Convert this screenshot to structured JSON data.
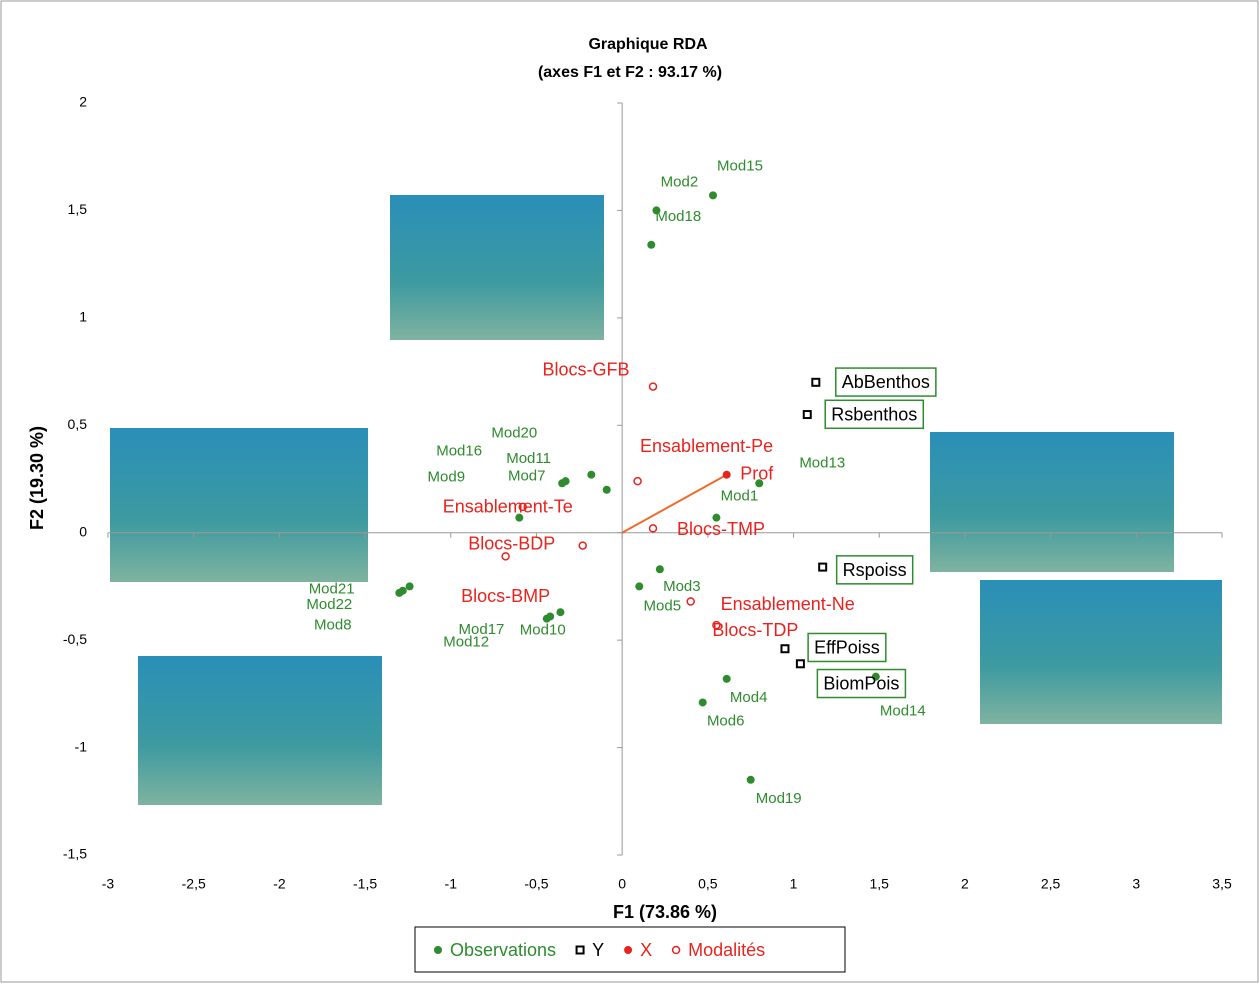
{
  "chart_data": {
    "type": "scatter",
    "title": "Graphique RDA",
    "subtitle": "(axes F1 et F2 : 93.17 %)",
    "x_label": "F1 (73.86 %)",
    "y_label": "F2 (19.30 %)",
    "xlim": [
      -3,
      3.5
    ],
    "ylim": [
      -1.5,
      2
    ],
    "xticks": [
      -3,
      {
        "value": -2.5,
        "label": "-2,5"
      },
      -2,
      {
        "value": -1.5,
        "label": "-1,5"
      },
      -1,
      {
        "value": -0.5,
        "label": "-0,5"
      },
      0,
      {
        "value": 0.5,
        "label": "0,5"
      },
      1,
      {
        "value": 1.5,
        "label": "1,5"
      },
      2,
      {
        "value": 2.5,
        "label": "2,5"
      },
      3,
      {
        "value": 3.5,
        "label": "3,5"
      }
    ],
    "yticks": [
      {
        "value": -1.5,
        "label": "-1,5"
      },
      -1,
      {
        "value": -0.5,
        "label": "-0,5"
      },
      0,
      {
        "value": 0.5,
        "label": "0,5"
      },
      1,
      {
        "value": 1.5,
        "label": "1,5"
      },
      2
    ],
    "series": [
      {
        "name": "Observations",
        "color": "#2e8b2e",
        "marker": "dot",
        "labels": [
          "Mod15",
          "Mod2",
          "Mod18",
          "Mod20",
          "Mod16",
          "Mod11",
          "Mod7",
          "Mod9",
          "Mod13",
          "Mod1",
          "Mod3",
          "Mod5",
          "Mod21",
          "Mod22",
          "Mod8",
          "Mod17",
          "Mod10",
          "Mod12",
          "Mod4",
          "Mod6",
          "Mod14",
          "Mod19"
        ],
        "x": [
          0.53,
          0.2,
          0.17,
          -0.18,
          -0.35,
          -0.33,
          -0.09,
          -0.6,
          0.8,
          0.55,
          0.22,
          0.1,
          -1.24,
          -1.3,
          -1.28,
          -0.36,
          -0.44,
          -0.42,
          0.61,
          0.47,
          1.48,
          0.75
        ],
        "values": [
          1.57,
          1.5,
          1.34,
          0.27,
          0.23,
          0.24,
          0.2,
          0.07,
          0.23,
          0.07,
          -0.17,
          -0.25,
          -0.25,
          -0.28,
          -0.27,
          -0.37,
          -0.4,
          -0.39,
          -0.68,
          -0.79,
          -0.67,
          -1.15
        ]
      },
      {
        "name": "Y",
        "color": "#000000",
        "marker": "square",
        "labels": [
          "AbBenthos",
          "Rsbenthos",
          "Rspoiss",
          "EffPoiss",
          "BiomPois"
        ],
        "x": [
          1.13,
          1.08,
          1.17,
          0.95,
          1.04
        ],
        "values": [
          0.7,
          0.55,
          -0.16,
          -0.54,
          -0.61
        ]
      },
      {
        "name": "X",
        "color": "#e8231e",
        "marker": "dot",
        "labels": [
          "Prof"
        ],
        "x": [
          0.61
        ],
        "values": [
          0.27
        ]
      },
      {
        "name": "Modalités",
        "color": "#e8231e",
        "marker": "circle",
        "labels": [
          "Blocs-GFB",
          "Ensablement-Pe",
          "Ensablement-Te",
          "Blocs-TMP",
          "Blocs-BDP",
          "Blocs-BMP",
          "Ensablement-Ne",
          "Blocs-TDP"
        ],
        "x": [
          0.18,
          0.09,
          -0.58,
          0.18,
          -0.23,
          -0.68,
          0.4,
          0.55
        ],
        "values": [
          0.68,
          0.24,
          0.12,
          0.02,
          -0.06,
          -0.11,
          -0.32,
          -0.43
        ]
      }
    ]
  }
}
